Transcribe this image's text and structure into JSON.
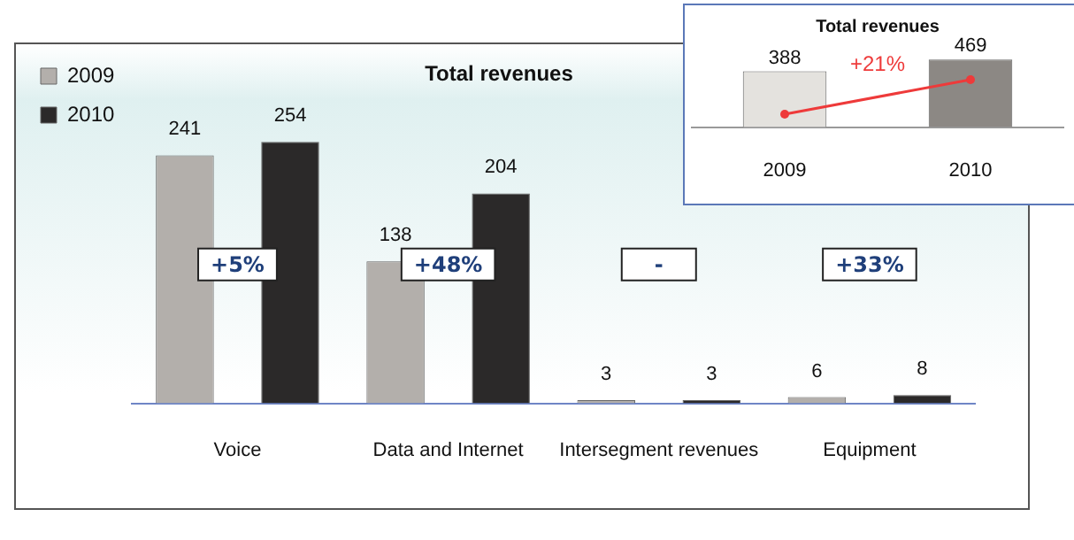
{
  "chart_data": [
    {
      "type": "bar",
      "title": "Total revenues",
      "categories": [
        "Voice",
        "Data and Internet",
        "Intersegment revenues",
        "Equipment"
      ],
      "series": [
        {
          "name": "2009",
          "color": "#b3afab",
          "values": [
            241,
            138,
            3,
            6
          ]
        },
        {
          "name": "2010",
          "color": "#2b2929",
          "values": [
            254,
            204,
            3,
            8
          ]
        }
      ],
      "data_labels": true,
      "legend": "top left",
      "annotations": [
        "+5%",
        "+48%",
        "-",
        "+33%"
      ]
    },
    {
      "type": "bar",
      "title": "Total revenues",
      "categories": [
        "2009",
        "2010"
      ],
      "values": [
        388,
        469
      ],
      "colors": [
        "#e4e2de",
        "#8c8884"
      ],
      "data_labels": true,
      "annotations": [
        "+21%"
      ]
    }
  ]
}
